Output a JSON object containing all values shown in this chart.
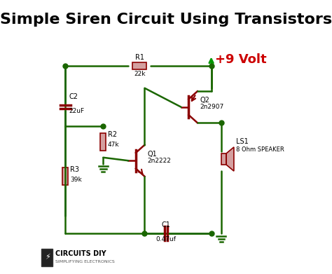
{
  "title": "Simple Siren Circuit Using Transistors",
  "title_fontsize": 16,
  "title_fontweight": "bold",
  "bg_color": "#ffffff",
  "wire_color": "#1a6600",
  "component_color": "#8B0000",
  "text_color": "#000000",
  "voltage_color": "#cc0000",
  "logo_text": "CIRCUITS DIY",
  "logo_subtext": "SIMPLIFYING ELECTRONICS",
  "components": {
    "R1": {
      "label": "R1",
      "value": "22k"
    },
    "R2": {
      "label": "R2",
      "value": "47k"
    },
    "R3": {
      "label": "R3",
      "value": "39k"
    },
    "C1": {
      "label": "C1",
      "value": "0.47uf"
    },
    "C2": {
      "label": "C2",
      "value": "22uF"
    },
    "Q1": {
      "label": "Q1",
      "value": "2n2222"
    },
    "Q2": {
      "label": "Q2",
      "value": "2n2907"
    },
    "LS1": {
      "label": "LS1",
      "value": "8 Ohm SPEAKER"
    },
    "VCC": {
      "label": "+9 Volt"
    }
  }
}
